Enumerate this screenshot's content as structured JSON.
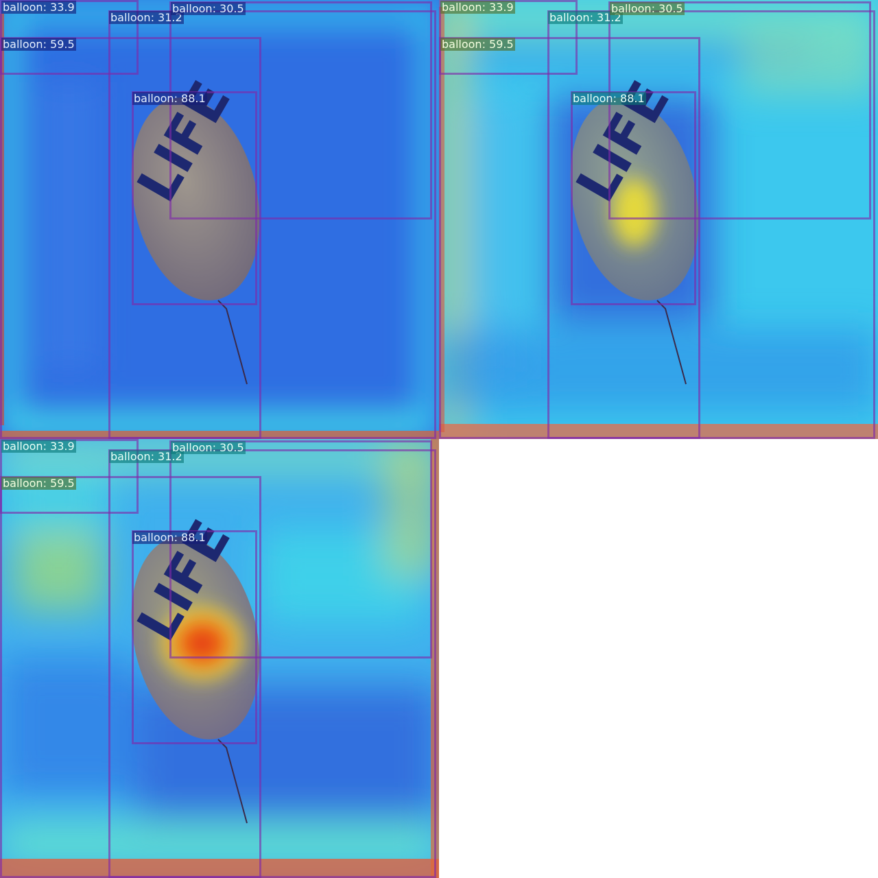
{
  "panels": [
    {
      "variant": "cool",
      "detections": [
        {
          "label": "balloon: 33.9",
          "style": "dark"
        },
        {
          "label": "balloon: 31.2",
          "style": "dark"
        },
        {
          "label": "balloon: 30.5",
          "style": "dark"
        },
        {
          "label": "balloon: 59.5",
          "style": "dark"
        },
        {
          "label": "balloon: 88.1",
          "style": "dark"
        }
      ]
    },
    {
      "variant": "mid",
      "detections": [
        {
          "label": "balloon: 33.9",
          "style": "olive"
        },
        {
          "label": "balloon: 31.2",
          "style": "teal"
        },
        {
          "label": "balloon: 30.5",
          "style": "olive"
        },
        {
          "label": "balloon: 59.5",
          "style": "olive"
        },
        {
          "label": "balloon: 88.1",
          "style": "teal"
        }
      ]
    },
    {
      "variant": "hot",
      "detections": [
        {
          "label": "balloon: 33.9",
          "style": "teal"
        },
        {
          "label": "balloon: 31.2",
          "style": "teal"
        },
        {
          "label": "balloon: 30.5",
          "style": "teal"
        },
        {
          "label": "balloon: 59.5",
          "style": "olive"
        },
        {
          "label": "balloon: 88.1",
          "style": "dark"
        }
      ]
    }
  ],
  "balloon_text": "LIFE"
}
